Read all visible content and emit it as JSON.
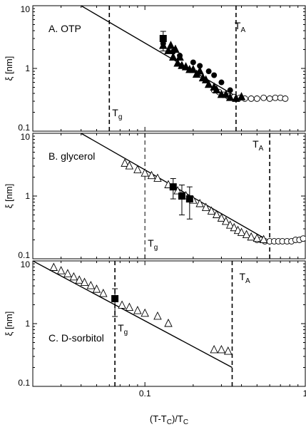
{
  "chart_data": [
    {
      "type": "scatter",
      "panel_label": "A. OTP",
      "xscale": "log",
      "yscale": "log",
      "xlim": [
        0.02,
        1
      ],
      "ylim": [
        0.1,
        10
      ],
      "ylabel": "ξ [nm]",
      "yticks": [
        "0.1",
        "1",
        "10"
      ],
      "vlines": [
        {
          "x": 0.06,
          "label": "T",
          "label_sub": "g",
          "style": "dashed"
        },
        {
          "x": 0.37,
          "label": "T",
          "label_sub": "A",
          "style": "dashed"
        }
      ],
      "fit_line": {
        "x": [
          0.04,
          0.4
        ],
        "y": [
          10,
          0.32
        ]
      },
      "series": [
        {
          "marker": "square-filled",
          "x": [
            0.13
          ],
          "y": [
            3.0
          ],
          "yerr_low": [
            1.9
          ],
          "yerr_high": [
            3.9
          ]
        },
        {
          "marker": "triangle-filled",
          "x": [
            0.13,
            0.14,
            0.145,
            0.15,
            0.155,
            0.16,
            0.165,
            0.17,
            0.18,
            0.19,
            0.2,
            0.21,
            0.22,
            0.23,
            0.24,
            0.25,
            0.27,
            0.28,
            0.3,
            0.32,
            0.34,
            0.37,
            0.4
          ],
          "y": [
            2.3,
            1.9,
            2.3,
            1.5,
            2.0,
            1.2,
            1.5,
            1.1,
            1.05,
            0.95,
            0.95,
            0.8,
            0.9,
            0.7,
            0.65,
            0.55,
            0.5,
            0.45,
            0.38,
            0.38,
            0.34,
            0.33,
            0.35
          ]
        },
        {
          "marker": "circle-filled",
          "x": [
            0.13,
            0.15,
            0.165,
            0.2,
            0.22,
            0.25,
            0.27,
            0.3,
            0.34
          ],
          "y": [
            2.5,
            1.85,
            1.6,
            1.25,
            1.1,
            0.9,
            0.78,
            0.6,
            0.45
          ]
        },
        {
          "marker": "circle-open",
          "x": [
            0.27,
            0.29,
            0.31,
            0.33,
            0.36,
            0.39,
            0.42,
            0.46,
            0.5,
            0.55,
            0.6,
            0.65,
            0.7,
            0.75
          ],
          "y": [
            0.45,
            0.42,
            0.38,
            0.36,
            0.35,
            0.34,
            0.33,
            0.33,
            0.33,
            0.34,
            0.33,
            0.34,
            0.34,
            0.33
          ]
        }
      ]
    },
    {
      "type": "scatter",
      "panel_label": "B. glycerol",
      "xscale": "log",
      "yscale": "log",
      "xlim": [
        0.02,
        1
      ],
      "ylim": [
        0.1,
        10
      ],
      "ylabel": "ξ [nm]",
      "yticks": [
        "0.1",
        "1",
        "10"
      ],
      "vlines": [
        {
          "x": 0.1,
          "label": "T",
          "label_sub": "g",
          "style": "dashed"
        },
        {
          "x": 0.6,
          "label": "T",
          "label_sub": "A",
          "style": "dashed"
        }
      ],
      "fit_line": {
        "x": [
          0.04,
          0.6
        ],
        "y": [
          10,
          0.19
        ]
      },
      "series": [
        {
          "marker": "square-filled",
          "x": [
            0.15,
            0.17,
            0.19
          ],
          "y": [
            1.4,
            1.0,
            0.9
          ],
          "yerr_low": [
            0.9,
            0.5,
            0.43
          ],
          "yerr_high": [
            1.9,
            1.5,
            1.4
          ]
        },
        {
          "marker": "triangle-open",
          "x": [
            0.075,
            0.08,
            0.09,
            0.1,
            0.11,
            0.12,
            0.14,
            0.16,
            0.18,
            0.2,
            0.22,
            0.24,
            0.26,
            0.28,
            0.3,
            0.32,
            0.34,
            0.36,
            0.38,
            0.4,
            0.43,
            0.46,
            0.5,
            0.55
          ],
          "y": [
            3.3,
            3.0,
            2.6,
            2.3,
            2.1,
            1.9,
            1.5,
            1.2,
            1.0,
            0.85,
            0.75,
            0.65,
            0.57,
            0.5,
            0.44,
            0.39,
            0.34,
            0.31,
            0.28,
            0.26,
            0.24,
            0.22,
            0.21,
            0.2
          ]
        },
        {
          "marker": "circle-open",
          "x": [
            0.5,
            0.53,
            0.56,
            0.6,
            0.64,
            0.68,
            0.72,
            0.77,
            0.82,
            0.87,
            0.92,
            0.97
          ],
          "y": [
            0.2,
            0.2,
            0.19,
            0.19,
            0.19,
            0.19,
            0.19,
            0.19,
            0.19,
            0.2,
            0.2,
            0.21
          ]
        }
      ]
    },
    {
      "type": "scatter",
      "panel_label": "C. D-sorbitol",
      "xscale": "log",
      "yscale": "log",
      "xlim": [
        0.02,
        1
      ],
      "ylim": [
        0.1,
        10
      ],
      "ylabel": "ξ [nm]",
      "yticks": [
        "0.1",
        "1",
        "10"
      ],
      "xlabel": "(T-T",
      "xlabel_sub1": "C",
      "xlabel_mid": ")/T",
      "xlabel_sub2": "C",
      "xticks": [
        "0.1",
        "1"
      ],
      "vlines": [
        {
          "x": 0.065,
          "label": "T",
          "label_sub": "g",
          "style": "dashed"
        },
        {
          "x": 0.35,
          "label": "T",
          "label_sub": "A",
          "style": "dashed"
        }
      ],
      "fit_line": {
        "x": [
          0.02,
          0.35
        ],
        "y": [
          10,
          0.2
        ]
      },
      "series": [
        {
          "marker": "square-filled",
          "x": [
            0.065
          ],
          "y": [
            2.5
          ],
          "yerr_low": [
            1.3
          ],
          "yerr_high": [
            3.6
          ]
        },
        {
          "marker": "triangle-open",
          "x": [
            0.027,
            0.03,
            0.033,
            0.036,
            0.039,
            0.042,
            0.046,
            0.05,
            0.055,
            0.072,
            0.08,
            0.09,
            0.1,
            0.12,
            0.14,
            0.27,
            0.3,
            0.33
          ],
          "y": [
            7.8,
            6.9,
            6.2,
            5.5,
            4.9,
            4.5,
            4.0,
            3.5,
            3.0,
            1.95,
            1.8,
            1.6,
            1.45,
            1.3,
            1.0,
            0.38,
            0.38,
            0.36
          ]
        }
      ]
    }
  ]
}
